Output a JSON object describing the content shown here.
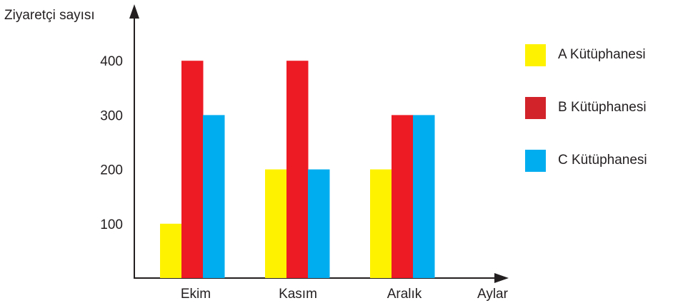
{
  "chart_data": {
    "type": "bar",
    "title": "",
    "ylabel": "Ziyaretçi sayısı",
    "xlabel": "Aylar",
    "categories": [
      "Ekim",
      "Kasım",
      "Aralık"
    ],
    "yticks": [
      "100",
      "200",
      "300",
      "400"
    ],
    "ylim": [
      0,
      500
    ],
    "grid": false,
    "legend_position": "right",
    "series": [
      {
        "name": "A Kütüphanesi",
        "color": "#fff200",
        "values": [
          100,
          200,
          200
        ]
      },
      {
        "name": "B Kütüphanesi",
        "color": "#ed1c24",
        "values": [
          400,
          400,
          300
        ]
      },
      {
        "name": "C Kütüphanesi",
        "color": "#00aeef",
        "values": [
          300,
          200,
          300
        ]
      }
    ]
  },
  "legend": {
    "items": [
      {
        "label": "A Kütüphanesi",
        "color": "#fff200"
      },
      {
        "label": "B Kütüphanesi",
        "color": "#d2232a"
      },
      {
        "label": "C Kütüphanesi",
        "color": "#00aeef"
      }
    ]
  }
}
